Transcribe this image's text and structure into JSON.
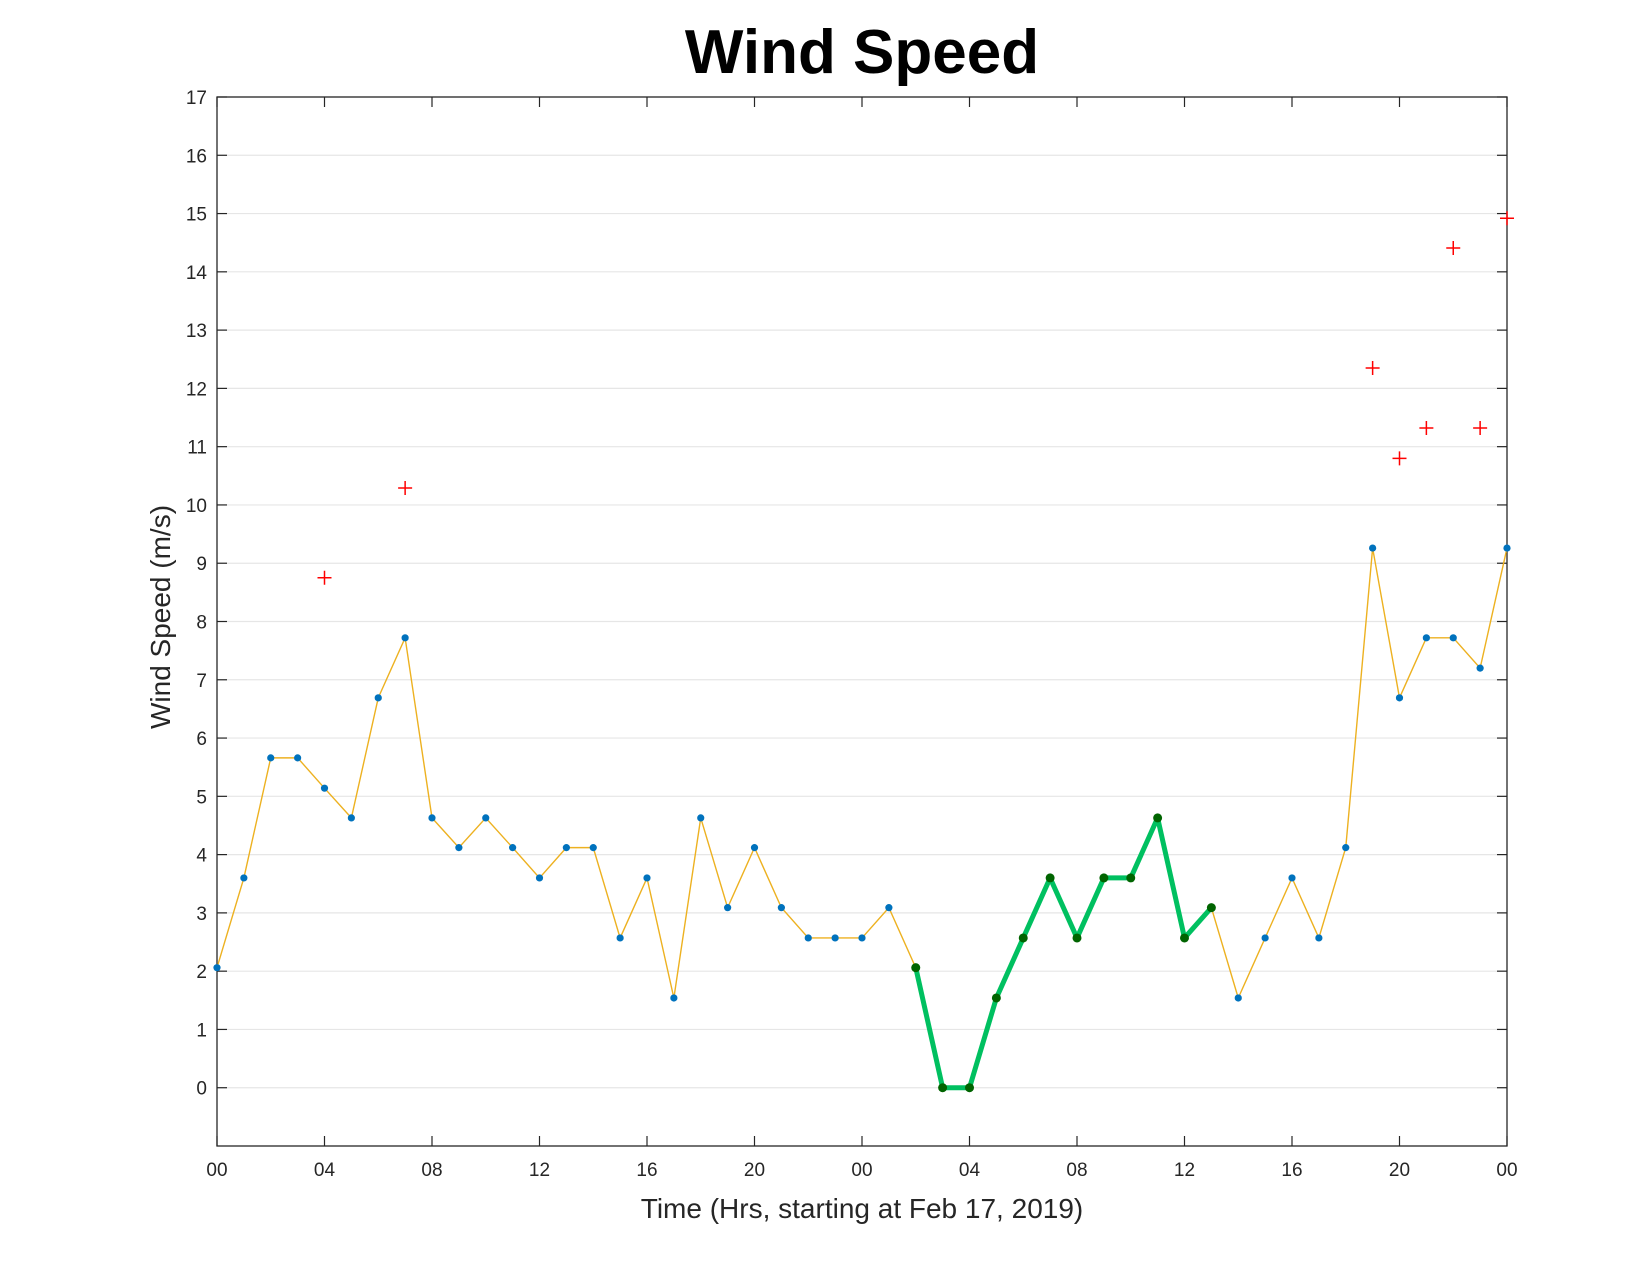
{
  "chart_data": {
    "type": "line",
    "title": "Wind Speed",
    "xlabel": "Time (Hrs, starting at Feb 17, 2019)",
    "ylabel": "Wind Speed (m/s)",
    "xlim": [
      0,
      48
    ],
    "ylim": [
      -1,
      17
    ],
    "grid": "horizontal",
    "x_ticks": [
      {
        "value": 0,
        "label": "00"
      },
      {
        "value": 4,
        "label": "04"
      },
      {
        "value": 8,
        "label": "08"
      },
      {
        "value": 12,
        "label": "12"
      },
      {
        "value": 16,
        "label": "16"
      },
      {
        "value": 20,
        "label": "20"
      },
      {
        "value": 24,
        "label": "00"
      },
      {
        "value": 28,
        "label": "04"
      },
      {
        "value": 32,
        "label": "08"
      },
      {
        "value": 36,
        "label": "12"
      },
      {
        "value": 40,
        "label": "16"
      },
      {
        "value": 44,
        "label": "20"
      },
      {
        "value": 48,
        "label": "00"
      }
    ],
    "y_ticks": [
      0,
      1,
      2,
      3,
      4,
      5,
      6,
      7,
      8,
      9,
      10,
      11,
      12,
      13,
      14,
      15,
      16,
      17
    ],
    "x": [
      0,
      1,
      2,
      3,
      4,
      5,
      6,
      7,
      8,
      9,
      10,
      11,
      12,
      13,
      14,
      15,
      16,
      17,
      18,
      19,
      20,
      21,
      22,
      23,
      24,
      25,
      26,
      27,
      28,
      29,
      30,
      31,
      32,
      33,
      34,
      35,
      36,
      37,
      38,
      39,
      40,
      41,
      42,
      43,
      44,
      45,
      46,
      47,
      48
    ],
    "series": [
      {
        "style": "line-with-points",
        "color": "#EDB120",
        "marker_color": "#0072BD",
        "values": [
          2.06,
          3.6,
          5.66,
          5.66,
          5.14,
          4.63,
          6.69,
          7.72,
          4.63,
          4.12,
          4.63,
          4.12,
          3.6,
          4.12,
          4.12,
          2.57,
          3.6,
          1.54,
          4.63,
          3.09,
          4.12,
          3.09,
          2.57,
          2.57,
          2.57,
          3.09,
          2.06,
          0.0,
          0.0,
          1.54,
          2.57,
          3.6,
          2.57,
          3.6,
          3.6,
          4.63,
          2.57,
          3.09,
          1.54,
          2.57,
          3.6,
          2.57,
          4.12,
          9.26,
          6.69,
          7.72,
          7.72,
          7.2,
          9.26
        ]
      },
      {
        "style": "highlight-segment",
        "color": "#00C060",
        "marker_color": "#006400",
        "x": [
          26,
          27,
          28,
          29,
          30,
          31,
          32,
          33,
          34,
          35,
          36,
          37
        ],
        "values": [
          2.06,
          0.0,
          0.0,
          1.54,
          2.57,
          3.6,
          2.57,
          3.6,
          3.6,
          4.63,
          2.57,
          3.09
        ]
      },
      {
        "style": "markers-plus",
        "color": "#FF0000",
        "x": [
          4,
          7,
          43,
          44,
          45,
          46,
          47,
          48
        ],
        "values": [
          8.75,
          10.29,
          12.35,
          10.8,
          11.32,
          14.41,
          11.32,
          14.92
        ]
      }
    ]
  }
}
